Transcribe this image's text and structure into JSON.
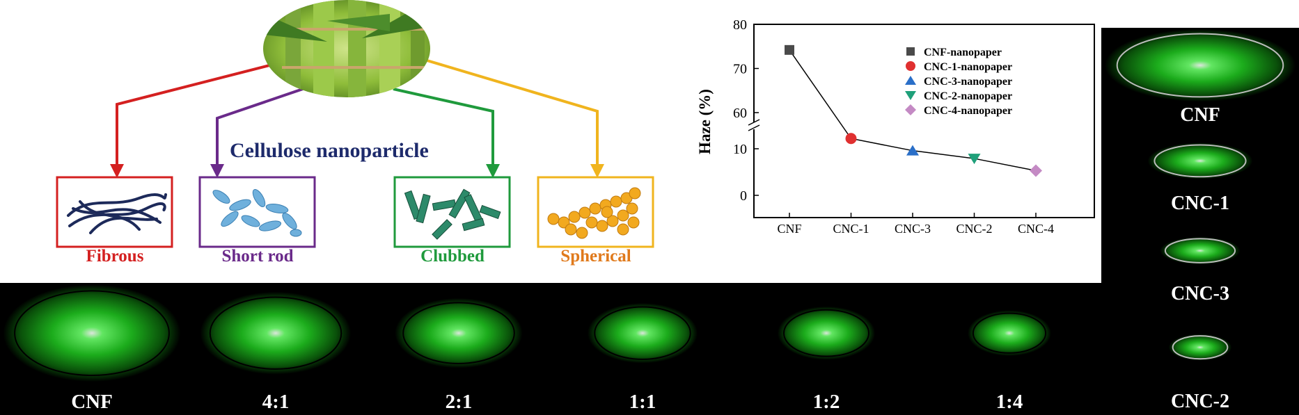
{
  "diagram": {
    "center_label": "Cellulose nanoparticle",
    "shapes": [
      {
        "label": "Fibrous",
        "color": "#d42020"
      },
      {
        "label": "Short rod",
        "color": "#6a2a8a"
      },
      {
        "label": "Clubbed",
        "color": "#1f9a3c"
      },
      {
        "label": "Spherical",
        "color": "#e07a1c"
      }
    ],
    "arrow_colors": [
      "#d42020",
      "#6a2a8a",
      "#1f9a3c",
      "#f0b41e"
    ]
  },
  "chart_data": {
    "type": "line",
    "categories": [
      "CNF",
      "CNC-1",
      "CNC-3",
      "CNC-2",
      "CNC-4"
    ],
    "values": [
      74.2,
      12.2,
      9.6,
      7.9,
      5.3
    ],
    "ylabel": "Haze (%)",
    "y_ticks_lower": [
      0,
      10
    ],
    "y_ticks_upper": [
      60,
      70,
      80
    ],
    "y_break": true,
    "legend": [
      {
        "name": "CNF-nanopaper",
        "marker": "square",
        "color": "#4a4a4a"
      },
      {
        "name": "CNC-1-nanopaper",
        "marker": "circle",
        "color": "#e03030"
      },
      {
        "name": "CNC-3-nanopaper",
        "marker": "triangle-up",
        "color": "#2a6fc8"
      },
      {
        "name": "CNC-2-nanopaper",
        "marker": "triangle-down",
        "color": "#1fa07a"
      },
      {
        "name": "CNC-4-nanopaper",
        "marker": "diamond",
        "color": "#c48ac4"
      }
    ],
    "legend_position": "top-right",
    "grid": false
  },
  "bottom_strip": {
    "labels": [
      "CNF",
      "4:1",
      "2:1",
      "1:1",
      "1:2",
      "1:4"
    ],
    "spot_sizes": [
      1.0,
      0.85,
      0.72,
      0.62,
      0.55,
      0.47
    ]
  },
  "right_column": {
    "labels": [
      "CNF",
      "CNC-1",
      "CNC-3",
      "CNC-2"
    ],
    "spot_sizes": [
      1.0,
      0.55,
      0.42,
      0.33
    ]
  }
}
